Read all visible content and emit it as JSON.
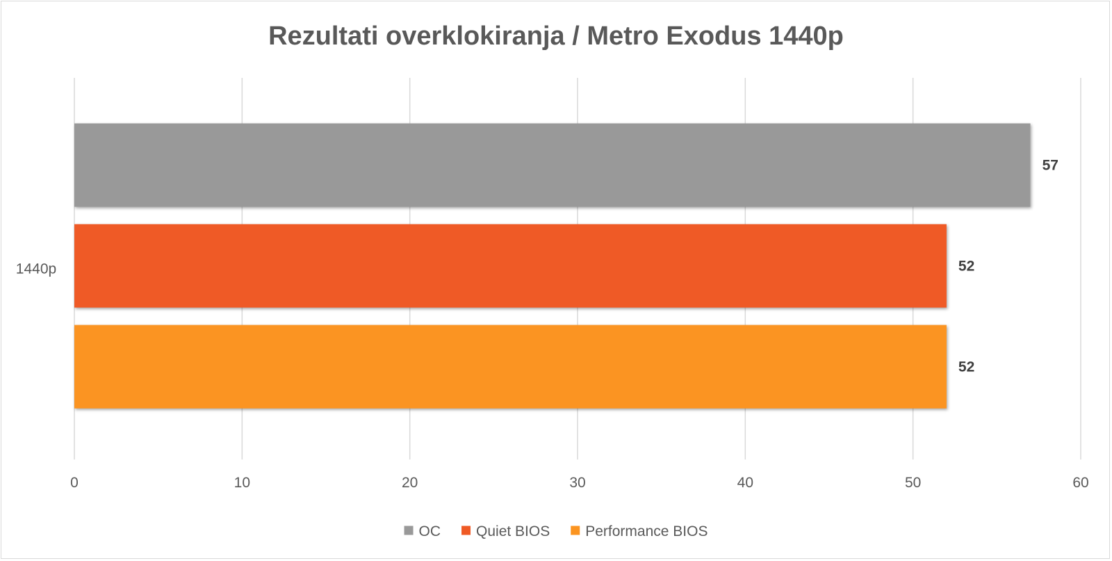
{
  "chart_data": {
    "type": "bar",
    "orientation": "horizontal",
    "title": "Rezultati overklokiranja / Metro Exodus 1440p",
    "categories": [
      "1440p"
    ],
    "series": [
      {
        "name": "OC",
        "values": [
          57
        ],
        "color": "#999999"
      },
      {
        "name": "Quiet BIOS",
        "values": [
          52
        ],
        "color": "#ef5a25"
      },
      {
        "name": "Performance BIOS",
        "values": [
          52
        ],
        "color": "#fb9420"
      }
    ],
    "xlim": [
      0,
      60
    ],
    "x_ticks": [
      "0",
      "10",
      "20",
      "30",
      "40",
      "50",
      "60"
    ],
    "data_labels": true,
    "grid": "vertical",
    "legend_position": "bottom"
  }
}
